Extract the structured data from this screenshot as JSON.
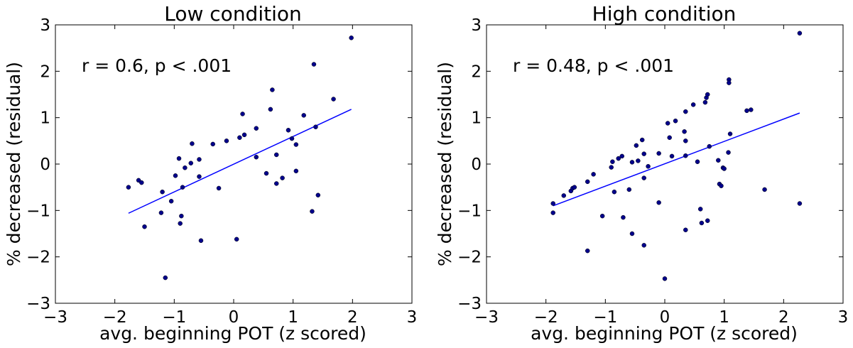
{
  "chart_data": [
    {
      "type": "scatter",
      "title": "Low condition",
      "xlabel": "avg. beginning POT (z scored)",
      "ylabel": "% decreased (residual)",
      "annotation": "r = 0.6, p < .001",
      "xlim": [
        -3,
        3
      ],
      "ylim": [
        -3,
        3
      ],
      "xticks": [
        -3,
        -2,
        -1,
        0,
        1,
        2,
        3
      ],
      "yticks": [
        -3,
        -2,
        -1,
        0,
        1,
        2,
        3
      ],
      "x_tick_labels": [
        "−3",
        "−2",
        "−1",
        "0",
        "1",
        "2",
        "3"
      ],
      "y_tick_labels": [
        "−3",
        "−2",
        "−1",
        "0",
        "1",
        "2",
        "3"
      ],
      "grid": false,
      "point_color": "#00008b",
      "line_color": "#0000ff",
      "fit_line": {
        "x": [
          -1.77,
          1.98
        ],
        "y": [
          -1.06,
          1.18
        ]
      },
      "points": [
        [
          -1.77,
          -0.5
        ],
        [
          -1.6,
          -0.35
        ],
        [
          -1.55,
          -0.4
        ],
        [
          -1.5,
          -1.35
        ],
        [
          -1.22,
          -1.05
        ],
        [
          -1.2,
          -0.6
        ],
        [
          -1.15,
          -2.45
        ],
        [
          -1.05,
          -0.8
        ],
        [
          -0.98,
          -0.25
        ],
        [
          -0.92,
          0.12
        ],
        [
          -0.9,
          -1.28
        ],
        [
          -0.88,
          -1.12
        ],
        [
          -0.86,
          -0.5
        ],
        [
          -0.82,
          -0.08
        ],
        [
          -0.72,
          0.02
        ],
        [
          -0.7,
          0.44
        ],
        [
          -0.58,
          0.1
        ],
        [
          -0.58,
          -0.27
        ],
        [
          -0.55,
          -1.65
        ],
        [
          -0.35,
          0.43
        ],
        [
          -0.25,
          -0.52
        ],
        [
          -0.12,
          0.5
        ],
        [
          0.05,
          -1.62
        ],
        [
          0.1,
          0.57
        ],
        [
          0.15,
          1.08
        ],
        [
          0.18,
          0.63
        ],
        [
          0.38,
          0.77
        ],
        [
          0.38,
          0.15
        ],
        [
          0.55,
          -0.2
        ],
        [
          0.62,
          1.18
        ],
        [
          0.65,
          1.6
        ],
        [
          0.72,
          0.2
        ],
        [
          0.72,
          -0.42
        ],
        [
          0.82,
          -0.3
        ],
        [
          0.92,
          0.73
        ],
        [
          0.98,
          0.55
        ],
        [
          1.05,
          0.42
        ],
        [
          1.05,
          -0.15
        ],
        [
          1.18,
          1.05
        ],
        [
          1.32,
          -1.02
        ],
        [
          1.35,
          2.15
        ],
        [
          1.38,
          0.8
        ],
        [
          1.42,
          -0.67
        ],
        [
          1.68,
          1.4
        ],
        [
          1.98,
          2.72
        ]
      ]
    },
    {
      "type": "scatter",
      "title": "High condition",
      "xlabel": "avg. beginning POT (z scored)",
      "ylabel": "% decreased (residual)",
      "annotation": "r = 0.48, p < .001",
      "xlim": [
        -3,
        3
      ],
      "ylim": [
        -3,
        3
      ],
      "xticks": [
        -3,
        -2,
        -1,
        0,
        1,
        2,
        3
      ],
      "yticks": [
        -3,
        -2,
        -1,
        0,
        1,
        2,
        3
      ],
      "x_tick_labels": [
        "−3",
        "−2",
        "−1",
        "0",
        "1",
        "2",
        "3"
      ],
      "y_tick_labels": [
        "−3",
        "−2",
        "−1",
        "0",
        "1",
        "2",
        "3"
      ],
      "grid": false,
      "point_color": "#00008b",
      "line_color": "#0000ff",
      "fit_line": {
        "x": [
          -1.88,
          2.27
        ],
        "y": [
          -0.9,
          1.1
        ]
      },
      "points": [
        [
          -1.88,
          -1.05
        ],
        [
          -1.88,
          -0.85
        ],
        [
          -1.7,
          -0.68
        ],
        [
          -1.58,
          -0.58
        ],
        [
          -1.55,
          -0.52
        ],
        [
          -1.52,
          -0.5
        ],
        [
          -1.3,
          -1.87
        ],
        [
          -1.3,
          -0.38
        ],
        [
          -1.2,
          -0.22
        ],
        [
          -1.05,
          -1.12
        ],
        [
          -0.9,
          -0.07
        ],
        [
          -0.88,
          0.05
        ],
        [
          -0.85,
          -0.6
        ],
        [
          -0.78,
          0.12
        ],
        [
          -0.72,
          0.17
        ],
        [
          -0.7,
          -1.15
        ],
        [
          -0.6,
          -0.55
        ],
        [
          -0.55,
          -1.5
        ],
        [
          -0.55,
          0.04
        ],
        [
          -0.48,
          0.4
        ],
        [
          -0.45,
          0.07
        ],
        [
          -0.38,
          0.52
        ],
        [
          -0.35,
          0.22
        ],
        [
          -0.35,
          -0.3
        ],
        [
          -0.35,
          -1.75
        ],
        [
          -0.28,
          -0.05
        ],
        [
          -0.1,
          0.23
        ],
        [
          -0.1,
          -0.83
        ],
        [
          0.0,
          -2.47
        ],
        [
          0.05,
          0.88
        ],
        [
          0.08,
          0.57
        ],
        [
          0.12,
          0.17
        ],
        [
          0.18,
          0.93
        ],
        [
          0.33,
          0.7
        ],
        [
          0.35,
          -1.42
        ],
        [
          0.35,
          0.5
        ],
        [
          0.35,
          0.18
        ],
        [
          0.35,
          1.13
        ],
        [
          0.48,
          1.28
        ],
        [
          0.55,
          0.05
        ],
        [
          0.6,
          -0.97
        ],
        [
          0.62,
          -1.27
        ],
        [
          0.68,
          1.33
        ],
        [
          0.7,
          1.43
        ],
        [
          0.72,
          -1.22
        ],
        [
          0.72,
          1.5
        ],
        [
          0.75,
          0.38
        ],
        [
          0.9,
          0.08
        ],
        [
          0.92,
          -0.43
        ],
        [
          0.95,
          -0.47
        ],
        [
          0.98,
          -0.08
        ],
        [
          1.0,
          -0.1
        ],
        [
          1.07,
          0.25
        ],
        [
          1.08,
          1.82
        ],
        [
          1.08,
          1.75
        ],
        [
          1.1,
          0.65
        ],
        [
          1.38,
          1.15
        ],
        [
          1.45,
          1.17
        ],
        [
          1.68,
          -0.55
        ],
        [
          2.27,
          2.82
        ],
        [
          2.27,
          -0.85
        ]
      ]
    }
  ]
}
